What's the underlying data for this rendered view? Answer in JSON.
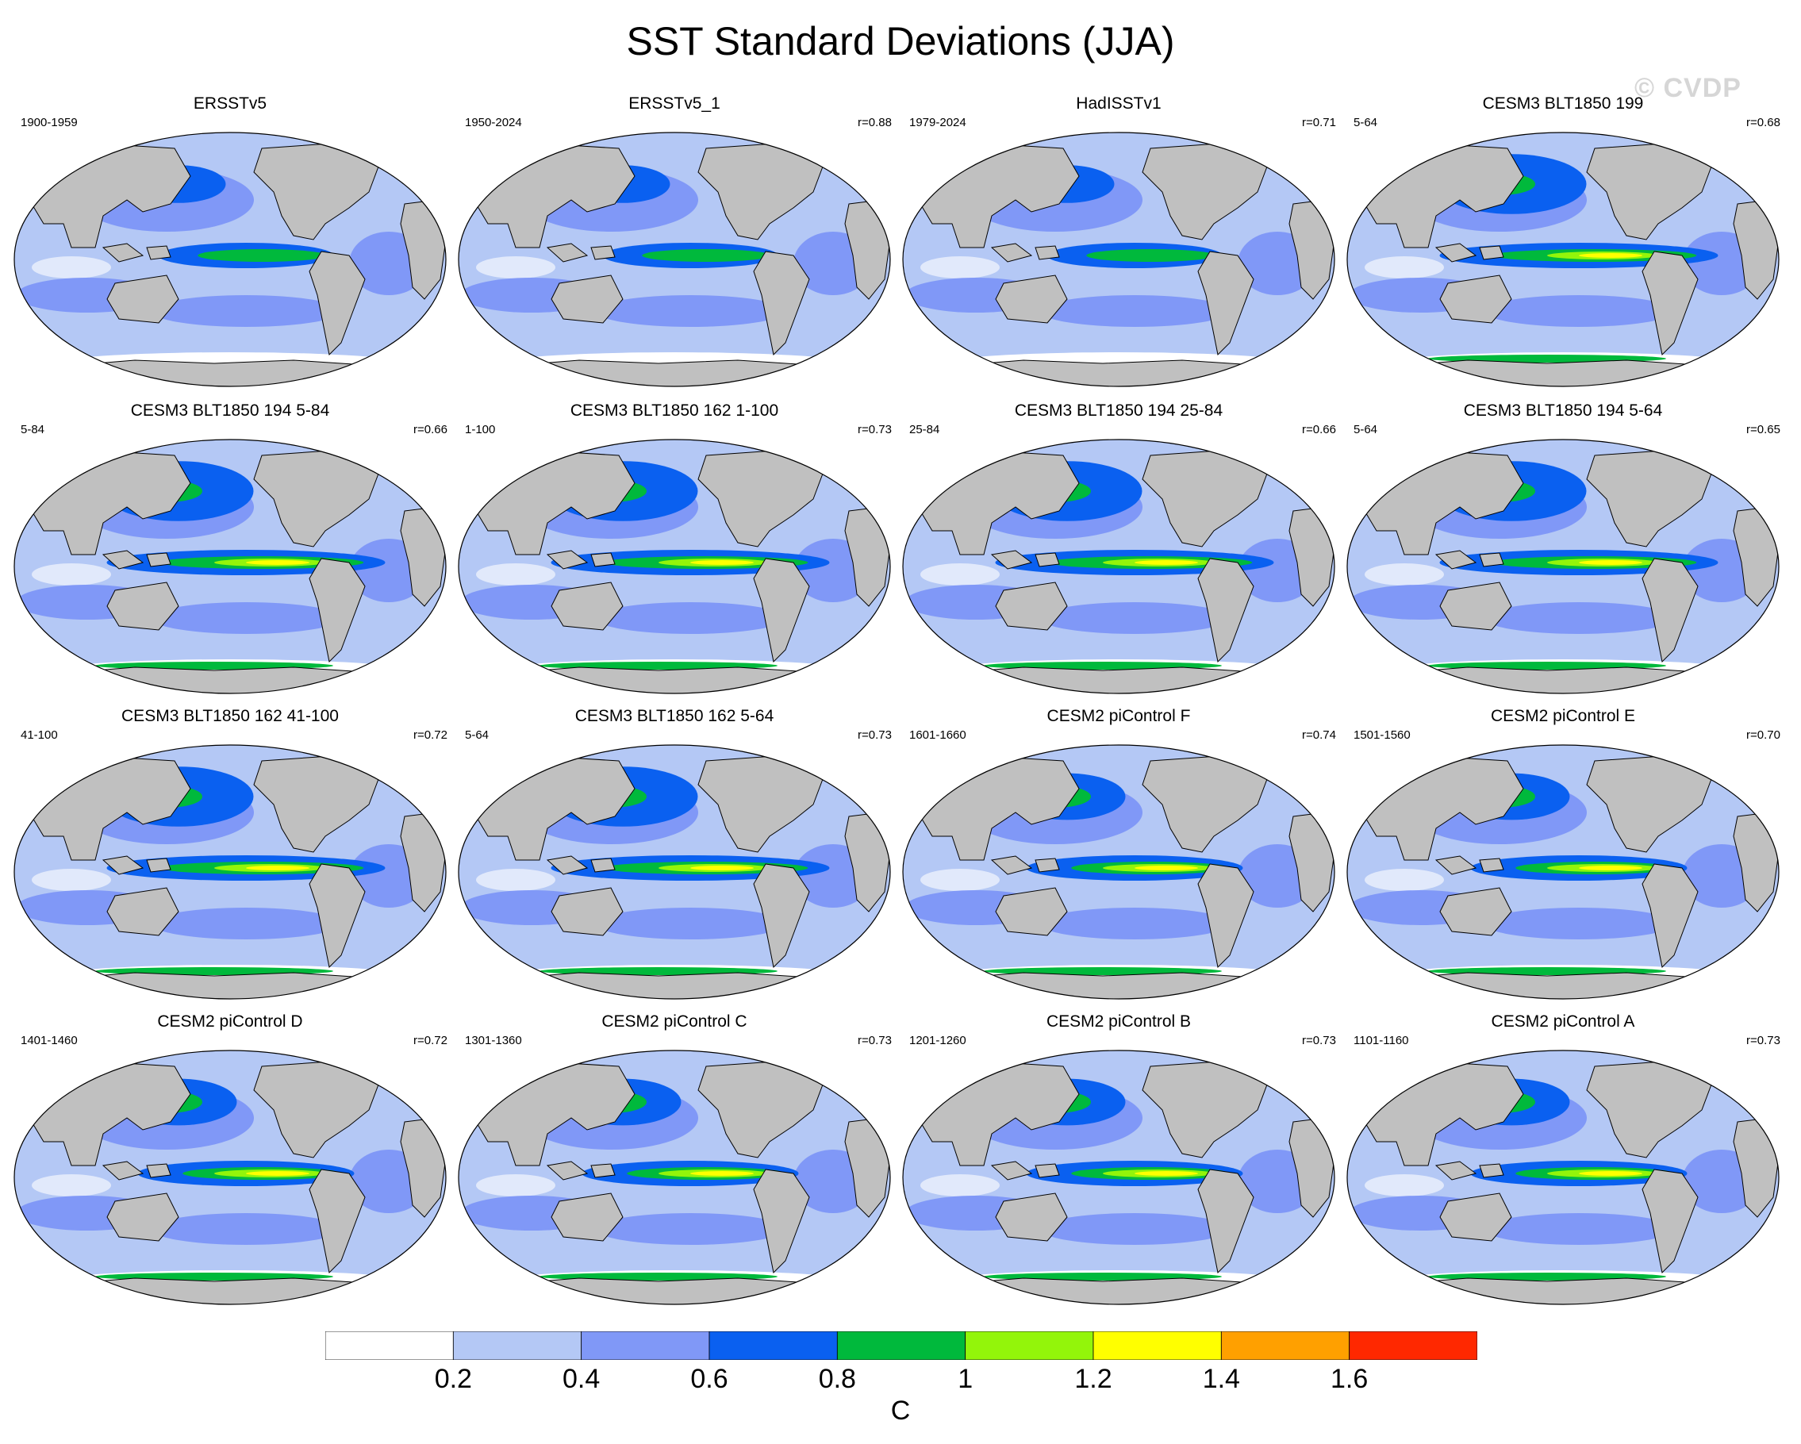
{
  "title": "SST Standard Deviations (JJA)",
  "watermark": "© CVDP",
  "panels": [
    {
      "title": "ERSSTv5",
      "years": "1900-1959",
      "r": ""
    },
    {
      "title": "ERSSTv5_1",
      "years": "1950-2024",
      "r": "r=0.88"
    },
    {
      "title": "HadISSTv1",
      "years": "1979-2024",
      "r": "r=0.71"
    },
    {
      "title": "CESM3 BLT1850 199",
      "years": "5-64",
      "r": "r=0.68"
    },
    {
      "title": "CESM3 BLT1850 194 5-84",
      "years": "5-84",
      "r": "r=0.66"
    },
    {
      "title": "CESM3 BLT1850 162 1-100",
      "years": "1-100",
      "r": "r=0.73"
    },
    {
      "title": "CESM3 BLT1850 194 25-84",
      "years": "25-84",
      "r": "r=0.66"
    },
    {
      "title": "CESM3 BLT1850 194 5-64",
      "years": "5-64",
      "r": "r=0.65"
    },
    {
      "title": "CESM3 BLT1850 162 41-100",
      "years": "41-100",
      "r": "r=0.72"
    },
    {
      "title": "CESM3 BLT1850 162 5-64",
      "years": "5-64",
      "r": "r=0.73"
    },
    {
      "title": "CESM2 piControl F",
      "years": "1601-1660",
      "r": "r=0.74"
    },
    {
      "title": "CESM2 piControl E",
      "years": "1501-1560",
      "r": "r=0.70"
    },
    {
      "title": "CESM2 piControl D",
      "years": "1401-1460",
      "r": "r=0.72"
    },
    {
      "title": "CESM2 piControl C",
      "years": "1301-1360",
      "r": "r=0.73"
    },
    {
      "title": "CESM2 piControl B",
      "years": "1201-1260",
      "r": "r=0.73"
    },
    {
      "title": "CESM2 piControl A",
      "years": "1101-1160",
      "r": "r=0.73"
    }
  ],
  "colorbar": {
    "units": "C",
    "labels": [
      "0.2",
      "0.4",
      "0.6",
      "0.8",
      "1",
      "1.2",
      "1.4",
      "1.6"
    ],
    "colors": [
      "#ffffff",
      "#b4c8f5",
      "#8098f7",
      "#0a60f0",
      "#00b93c",
      "#93f50a",
      "#ffff00",
      "#ffa000",
      "#ff2800"
    ]
  },
  "map_colors": {
    "land": "#c0c0c0",
    "coast": "#000000"
  }
}
